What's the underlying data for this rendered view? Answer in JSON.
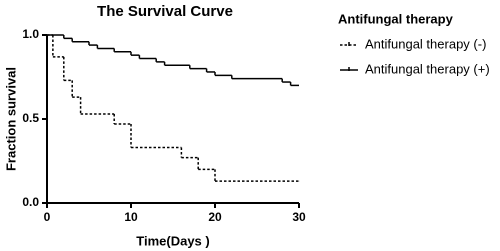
{
  "chart_data": {
    "type": "step",
    "title": "The Survival Curve",
    "x_label": "Time(Days )",
    "y_label": "Fraction survival",
    "legend_title": "Antifungal therapy",
    "legend": "right",
    "xlim": [
      0,
      30
    ],
    "xticks": [
      0,
      10,
      20,
      30
    ],
    "ylim": [
      0,
      1
    ],
    "yticks": [
      {
        "value": 0,
        "label": "0.0"
      },
      {
        "value": 0.5,
        "label": "0.5"
      },
      {
        "value": 1,
        "label": "1.0"
      }
    ],
    "series": [
      {
        "name": "Antifungal therapy  (-)",
        "color": "#000000",
        "line_style": "dashed",
        "x": [
          0,
          0.7,
          2,
          3,
          4,
          8,
          10,
          16,
          18,
          20,
          30
        ],
        "values": [
          1,
          0.87,
          0.73,
          0.63,
          0.53,
          0.47,
          0.33,
          0.27,
          0.2,
          0.13,
          0.13
        ]
      },
      {
        "name": "Antifungal therapy  (+)",
        "color": "#000000",
        "line_style": "solid",
        "x": [
          0,
          2,
          3,
          5,
          6,
          8,
          10,
          11,
          13,
          14,
          17,
          19,
          20,
          22,
          28,
          29,
          30
        ],
        "values": [
          1,
          0.98,
          0.96,
          0.94,
          0.92,
          0.9,
          0.88,
          0.86,
          0.84,
          0.82,
          0.8,
          0.78,
          0.76,
          0.74,
          0.72,
          0.7,
          0.7
        ]
      }
    ]
  }
}
